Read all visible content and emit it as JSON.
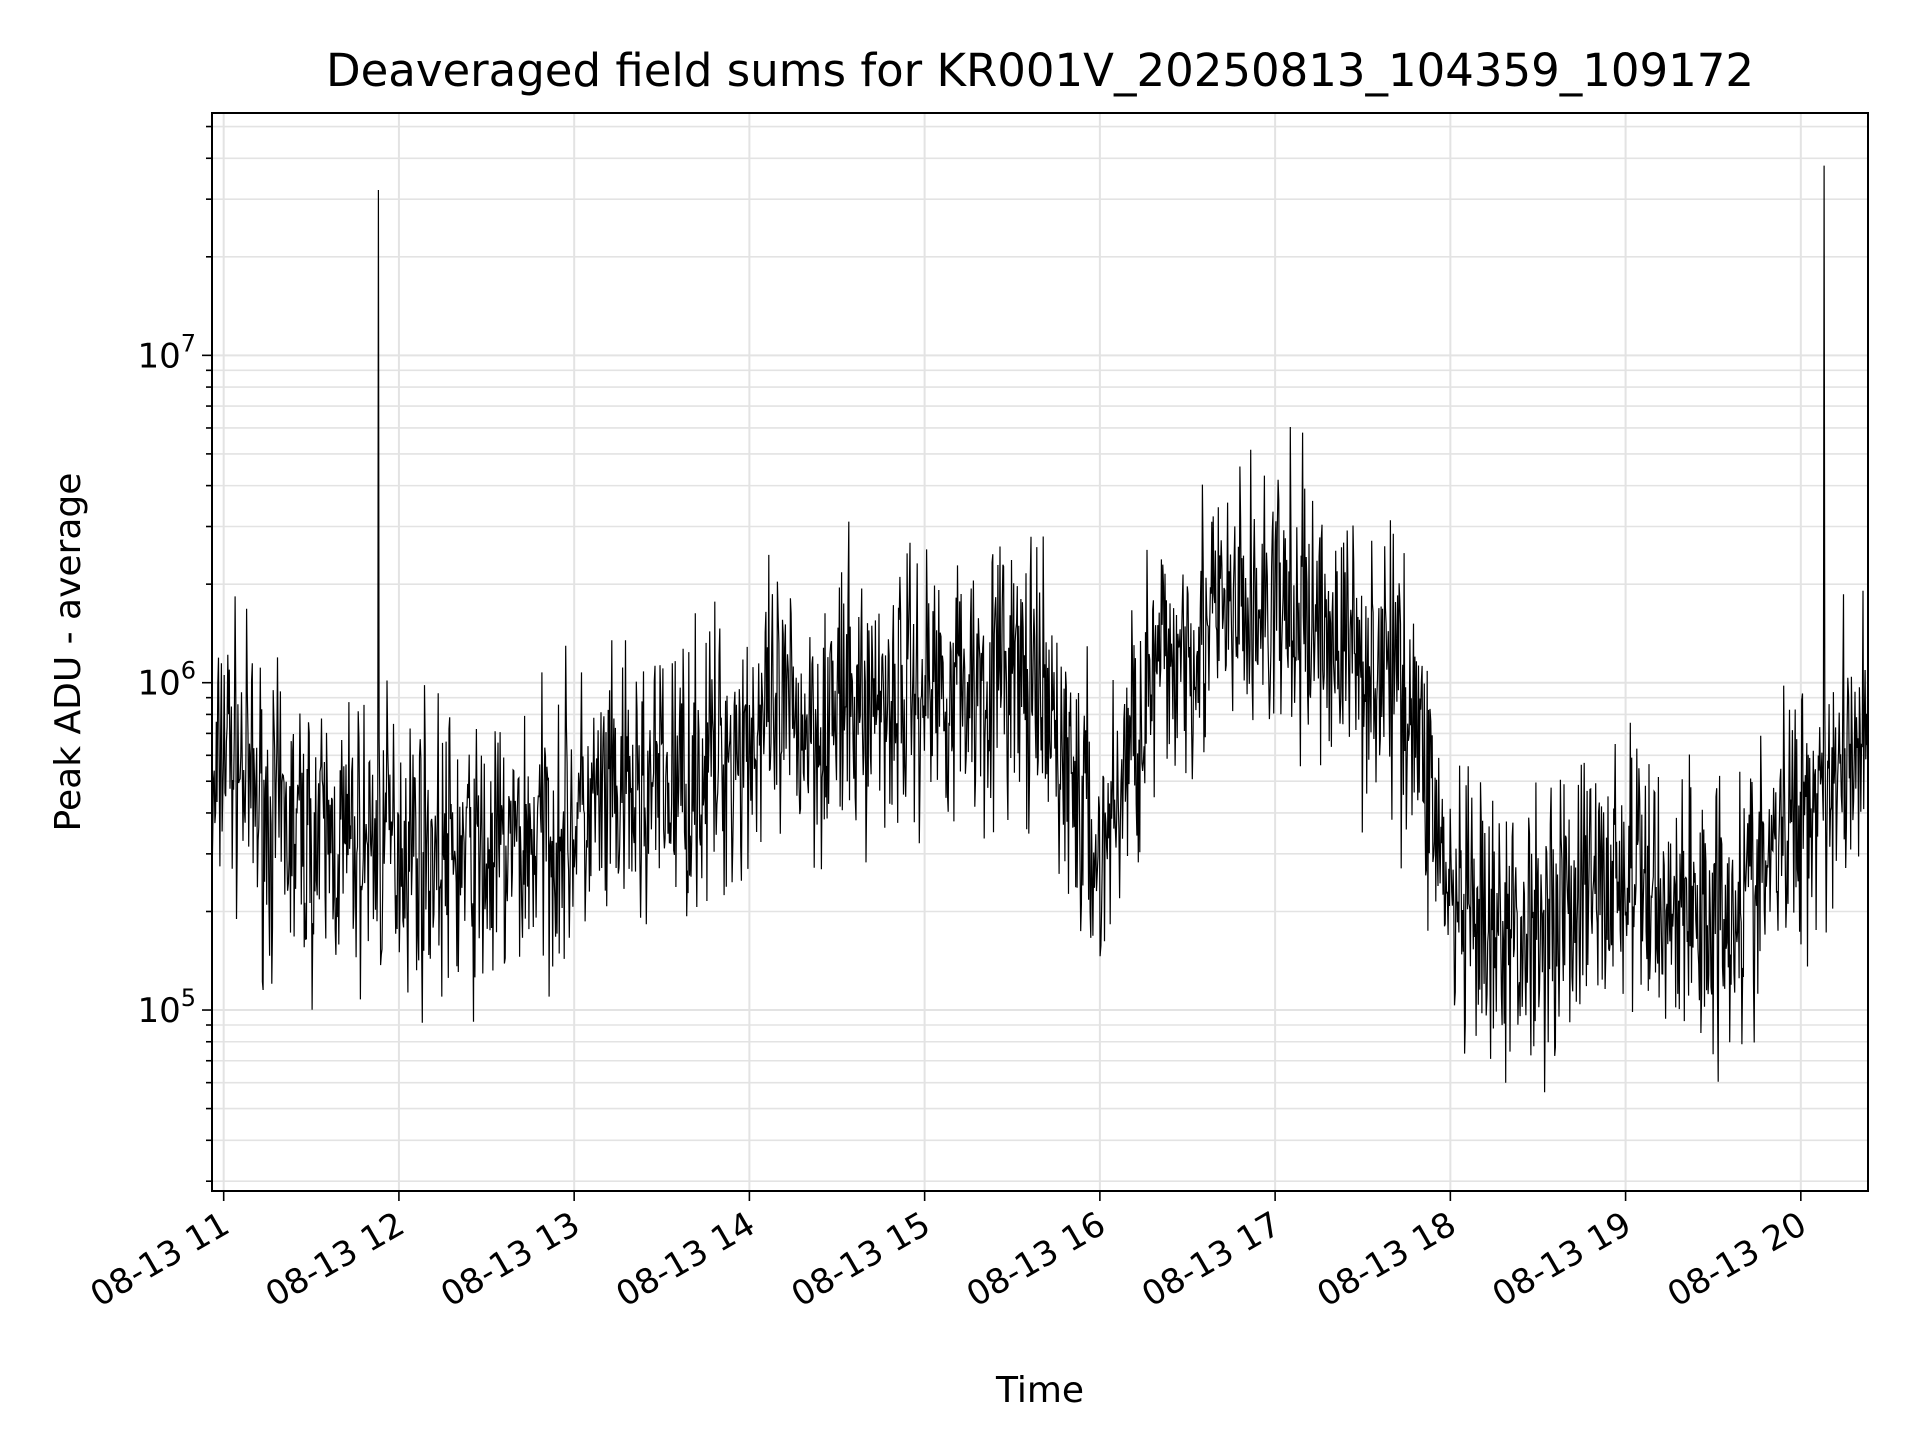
{
  "chart_data": {
    "type": "line",
    "title": "Deaveraged field sums for KR001V_20250813_104359_109172",
    "xlabel": "Time",
    "ylabel": "Peak ADU - average",
    "yscale": "log",
    "ylim": [
      28000,
      55000000
    ],
    "xlim": [
      "2025-08-13T10:56",
      "2025-08-13T20:23"
    ],
    "grid": true,
    "x_ticks": [
      {
        "t": "2025-08-13T11:00",
        "label": "08-13 11"
      },
      {
        "t": "2025-08-13T12:00",
        "label": "08-13 12"
      },
      {
        "t": "2025-08-13T13:00",
        "label": "08-13 13"
      },
      {
        "t": "2025-08-13T14:00",
        "label": "08-13 14"
      },
      {
        "t": "2025-08-13T15:00",
        "label": "08-13 15"
      },
      {
        "t": "2025-08-13T16:00",
        "label": "08-13 16"
      },
      {
        "t": "2025-08-13T17:00",
        "label": "08-13 17"
      },
      {
        "t": "2025-08-13T18:00",
        "label": "08-13 18"
      },
      {
        "t": "2025-08-13T19:00",
        "label": "08-13 19"
      },
      {
        "t": "2025-08-13T20:00",
        "label": "08-13 20"
      }
    ],
    "y_ticks": [
      {
        "value": 100000,
        "base": "10",
        "exp": "5"
      },
      {
        "value": 1000000,
        "base": "10",
        "exp": "6"
      },
      {
        "value": 10000000,
        "base": "10",
        "exp": "7"
      }
    ],
    "series": [
      {
        "color": "#000000",
        "x": [
          "2025-08-13T10:56",
          "2025-08-13T11:00",
          "2025-08-13T11:15",
          "2025-08-13T11:30",
          "2025-08-13T11:45",
          "2025-08-13T11:53",
          "2025-08-13T12:00",
          "2025-08-13T12:15",
          "2025-08-13T12:30",
          "2025-08-13T12:45",
          "2025-08-13T13:00",
          "2025-08-13T13:15",
          "2025-08-13T13:30",
          "2025-08-13T13:45",
          "2025-08-13T14:00",
          "2025-08-13T14:15",
          "2025-08-13T14:30",
          "2025-08-13T14:45",
          "2025-08-13T15:00",
          "2025-08-13T15:15",
          "2025-08-13T15:30",
          "2025-08-13T15:45",
          "2025-08-13T16:00",
          "2025-08-13T16:15",
          "2025-08-13T16:30",
          "2025-08-13T16:45",
          "2025-08-13T17:00",
          "2025-08-13T17:15",
          "2025-08-13T17:30",
          "2025-08-13T17:45",
          "2025-08-13T17:55",
          "2025-08-13T18:00",
          "2025-08-13T18:15",
          "2025-08-13T18:30",
          "2025-08-13T18:45",
          "2025-08-13T19:00",
          "2025-08-13T19:15",
          "2025-08-13T19:30",
          "2025-08-13T19:45",
          "2025-08-13T20:00",
          "2025-08-13T20:08",
          "2025-08-13T20:15",
          "2025-08-13T20:23"
        ],
        "y": [
          330000,
          700000,
          380000,
          330000,
          320000,
          330000,
          340000,
          300000,
          280000,
          330000,
          380000,
          420000,
          480000,
          550000,
          700000,
          750000,
          800000,
          900000,
          1000000,
          1000000,
          1100000,
          700000,
          280000,
          900000,
          1400000,
          1600000,
          1700000,
          1500000,
          1200000,
          1000000,
          400000,
          200000,
          150000,
          190000,
          230000,
          260000,
          210000,
          200000,
          240000,
          420000,
          520000,
          600000,
          800000
        ],
        "spikes": [
          {
            "t": "2025-08-13T11:53",
            "value": 32000000
          },
          {
            "t": "2025-08-13T20:08",
            "value": 38000000
          }
        ]
      }
    ]
  }
}
